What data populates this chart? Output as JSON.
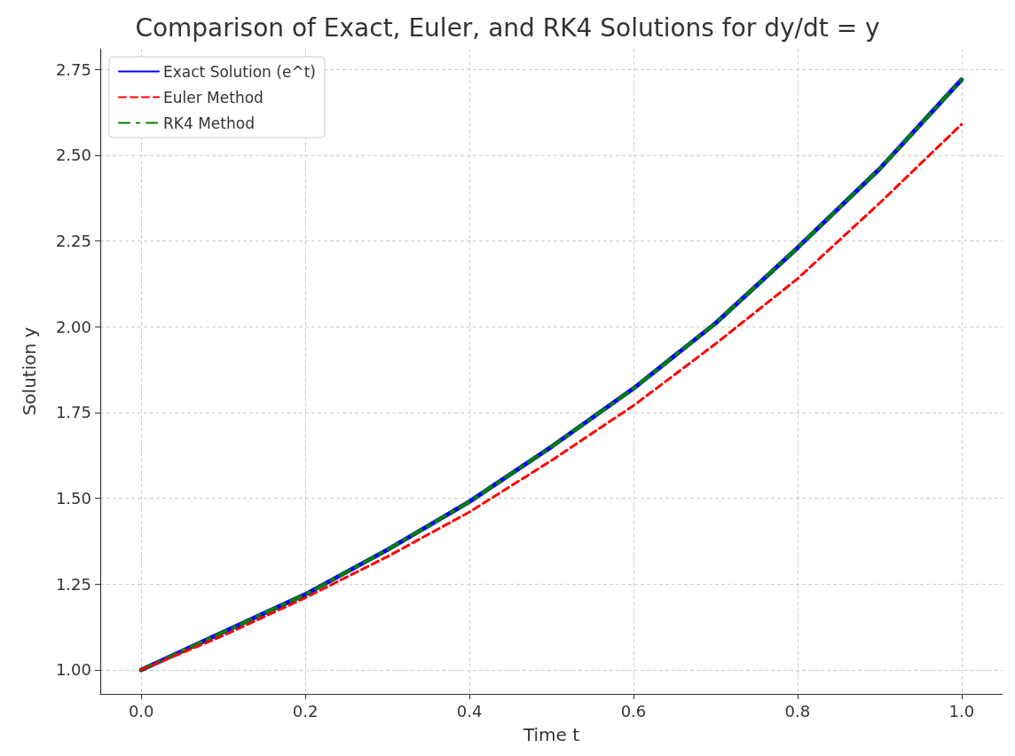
{
  "chart_data": {
    "type": "line",
    "title": "Comparison of Exact, Euler, and RK4 Solutions for dy/dt = y",
    "xlabel": "Time t",
    "ylabel": "Solution y",
    "x": [
      0,
      0.1,
      0.2,
      0.3,
      0.4,
      0.5,
      0.6,
      0.7,
      0.8,
      0.9,
      1.0
    ],
    "series": [
      {
        "name": "Exact Solution (e^t)",
        "color": "#0000ff",
        "line_style": "solid",
        "values": [
          1.0,
          1.11,
          1.22,
          1.35,
          1.49,
          1.65,
          1.82,
          2.01,
          2.23,
          2.46,
          2.72
        ]
      },
      {
        "name": "Euler Method",
        "color": "#ff0000",
        "line_style": "dashed",
        "values": [
          1.0,
          1.1,
          1.21,
          1.33,
          1.46,
          1.61,
          1.77,
          1.95,
          2.14,
          2.36,
          2.59
        ]
      },
      {
        "name": "RK4 Method",
        "color": "#008000",
        "line_style": "dashed",
        "values": [
          1.0,
          1.11,
          1.22,
          1.35,
          1.49,
          1.65,
          1.82,
          2.01,
          2.23,
          2.46,
          2.72
        ]
      }
    ],
    "xlim": [
      -0.05,
      1.05
    ],
    "xticks": [
      {
        "value": 0,
        "label": "0.0"
      },
      {
        "value": 0.2,
        "label": "0.2"
      },
      {
        "value": 0.4,
        "label": "0.4"
      },
      {
        "value": 0.6,
        "label": "0.6"
      },
      {
        "value": 0.8,
        "label": "0.8"
      },
      {
        "value": 1.0,
        "label": "1.0"
      }
    ],
    "ylim": [
      0.93,
      2.81
    ],
    "yticks": [
      {
        "value": 1,
        "label": "1.00"
      },
      {
        "value": 1.25,
        "label": "1.25"
      },
      {
        "value": 1.5,
        "label": "1.50"
      },
      {
        "value": 1.75,
        "label": "1.75"
      },
      {
        "value": 2,
        "label": "2.00"
      },
      {
        "value": 2.25,
        "label": "2.25"
      },
      {
        "value": 2.5,
        "label": "2.50"
      },
      {
        "value": 2.75,
        "label": "2.75"
      }
    ],
    "grid": true,
    "legend": "top left",
    "marker": "none"
  }
}
